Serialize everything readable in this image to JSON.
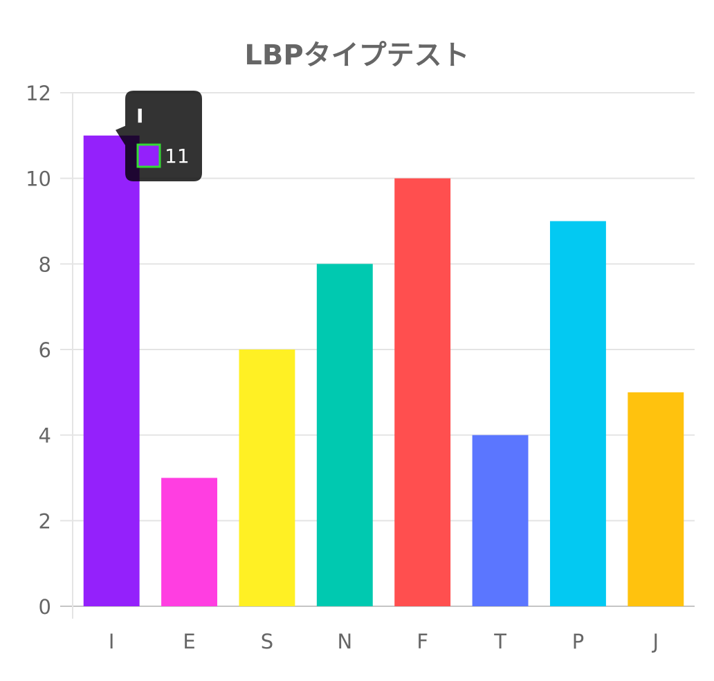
{
  "chart_data": {
    "type": "bar",
    "title": "LBPタイプテスト",
    "categories": [
      "I",
      "E",
      "S",
      "N",
      "F",
      "T",
      "P",
      "J"
    ],
    "values": [
      11,
      3,
      6,
      8,
      10,
      4,
      9,
      5
    ],
    "colors": [
      "#9421fb",
      "#ff3ee1",
      "#fff024",
      "#00c9b0",
      "#ff4f4f",
      "#5b76ff",
      "#03c9f2",
      "#ffc20e"
    ],
    "ylim": [
      0,
      12
    ],
    "yticks": [
      0,
      2,
      4,
      6,
      8,
      10,
      12
    ],
    "grid": true,
    "legend": "none"
  },
  "tooltip": {
    "title": "I",
    "value": "11",
    "swatch_color": "#9421fb",
    "swatch_border": "#33dd33"
  }
}
